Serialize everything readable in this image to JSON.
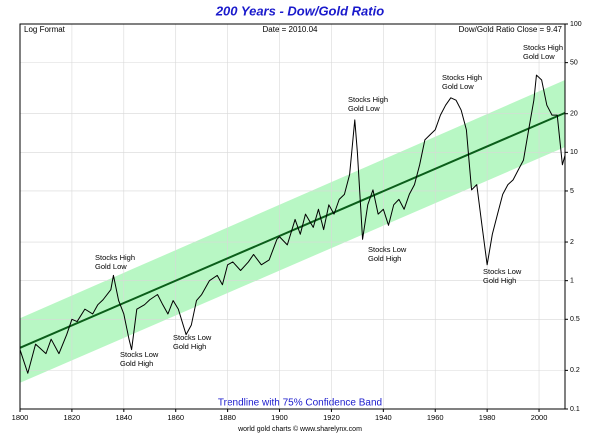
{
  "chart_data": {
    "type": "line",
    "title": "200 Years - Dow/Gold Ratio",
    "header_left": "Log Format",
    "header_center": "Date = 2010.04",
    "header_right": "Dow/Gold Ratio Close = 9.47",
    "footer": "Trendline with 75% Confidence Band",
    "credit": "world gold charts © www.sharelynx.com",
    "log_y": true,
    "grid": true,
    "xlim": [
      1800,
      2010
    ],
    "xticks": [
      1800,
      1820,
      1840,
      1860,
      1880,
      1900,
      1920,
      1940,
      1960,
      1980,
      2000
    ],
    "ylim": [
      0.1,
      100
    ],
    "yticks": [
      0.1,
      0.2,
      0.5,
      1,
      2,
      5,
      10,
      20,
      50,
      100
    ],
    "series": [
      {
        "name": "Dow/Gold Ratio",
        "color": "#000000",
        "x": [
          1800,
          1803,
          1806,
          1810,
          1812,
          1815,
          1818,
          1820,
          1822,
          1825,
          1828,
          1830,
          1832,
          1835,
          1836,
          1838,
          1840,
          1842,
          1843,
          1845,
          1848,
          1850,
          1853,
          1855,
          1857,
          1859,
          1861,
          1864,
          1866,
          1868,
          1870,
          1873,
          1876,
          1878,
          1880,
          1882,
          1885,
          1888,
          1890,
          1893,
          1896,
          1899,
          1900,
          1903,
          1906,
          1908,
          1910,
          1913,
          1915,
          1917,
          1919,
          1921,
          1923,
          1925,
          1927,
          1929,
          1930,
          1932,
          1934,
          1936,
          1938,
          1940,
          1942,
          1944,
          1946,
          1948,
          1950,
          1952,
          1954,
          1956,
          1958,
          1960,
          1962,
          1964,
          1966,
          1968,
          1970,
          1972,
          1973,
          1974,
          1976,
          1978,
          1980,
          1982,
          1984,
          1986,
          1988,
          1990,
          1992,
          1994,
          1996,
          1998,
          1999,
          2001,
          2003,
          2005,
          2007,
          2008,
          2009,
          2010
        ],
        "values": [
          0.29,
          0.19,
          0.32,
          0.27,
          0.35,
          0.27,
          0.38,
          0.5,
          0.48,
          0.6,
          0.55,
          0.65,
          0.71,
          0.85,
          1.1,
          0.7,
          0.55,
          0.35,
          0.29,
          0.6,
          0.65,
          0.71,
          0.78,
          0.65,
          0.55,
          0.7,
          0.6,
          0.38,
          0.45,
          0.7,
          0.78,
          1.0,
          1.1,
          0.93,
          1.33,
          1.4,
          1.2,
          1.4,
          1.6,
          1.33,
          1.45,
          2.1,
          2.2,
          1.9,
          3.0,
          2.3,
          3.3,
          2.6,
          3.6,
          2.5,
          3.9,
          3.3,
          4.3,
          4.7,
          6.7,
          17.9,
          10,
          2.1,
          3.9,
          5.1,
          3.3,
          3.6,
          2.7,
          3.9,
          4.3,
          3.6,
          4.7,
          5.6,
          8,
          12.5,
          13.7,
          15,
          19.5,
          23.3,
          26.6,
          25.5,
          21.3,
          15,
          8.7,
          5.1,
          5.6,
          2.7,
          1.33,
          2.3,
          3.3,
          4.7,
          5.6,
          6.1,
          7.3,
          8.7,
          15,
          25.5,
          40,
          36.6,
          23.3,
          19.5,
          19.5,
          12.5,
          8,
          9.47
        ]
      }
    ],
    "trendline": {
      "color": "#0b5e1a",
      "x": [
        1800,
        2010
      ],
      "values": [
        0.3,
        20.3
      ]
    },
    "band": {
      "color": "#b8f7c4",
      "x": [
        1800,
        2010
      ],
      "upper": [
        0.51,
        36.6
      ],
      "lower": [
        0.16,
        11
      ]
    },
    "annotations": [
      [
        "Stocks High",
        "Gold Low"
      ],
      [
        "Stocks Low",
        "Gold High"
      ],
      [
        "Stocks Low",
        "Gold High"
      ],
      [
        "Stocks High",
        "Gold Low"
      ],
      [
        "Stocks Low",
        "Gold High"
      ],
      [
        "Stocks High",
        "Gold Low"
      ],
      [
        "Stocks Low",
        "Gold High"
      ],
      [
        "Stocks High",
        "Gold Low"
      ]
    ]
  }
}
